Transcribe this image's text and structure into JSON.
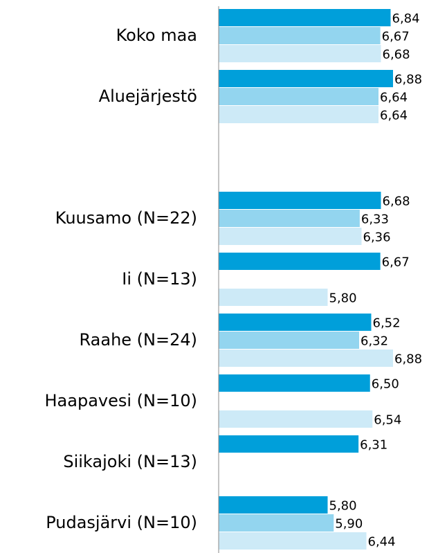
{
  "chart_data": {
    "type": "bar",
    "orientation": "horizontal",
    "categories": [
      "Koko maa",
      "Aluejärjestö",
      null,
      "Kuusamo (N=22)",
      "Ii (N=13)",
      "Raahe (N=24)",
      "Haapavesi (N=10)",
      "Siikajoki (N=13)",
      "Pudasjärvi (N=10)"
    ],
    "series": [
      {
        "color": "#009fda",
        "values": [
          6.84,
          6.88,
          null,
          6.68,
          6.67,
          6.52,
          6.5,
          6.31,
          5.8
        ],
        "value_labels": [
          "6,84",
          "6,88",
          null,
          "6,68",
          "6,67",
          "6,52",
          "6,50",
          "6,31",
          "5,80"
        ]
      },
      {
        "color": "#93d5ef",
        "values": [
          6.67,
          6.64,
          null,
          6.33,
          null,
          6.32,
          null,
          null,
          5.9
        ],
        "value_labels": [
          "6,67",
          "6,64",
          null,
          "6,33",
          null,
          "6,32",
          null,
          null,
          "5,90"
        ]
      },
      {
        "color": "#cdeaf7",
        "values": [
          6.68,
          6.64,
          null,
          6.36,
          5.8,
          6.88,
          6.54,
          null,
          6.44
        ],
        "value_labels": [
          "6,68",
          "6,64",
          null,
          "6,36",
          "5,80",
          "6,88",
          "6,54",
          null,
          "6,44"
        ]
      }
    ],
    "xlim": [
      4,
      7.8
    ]
  }
}
